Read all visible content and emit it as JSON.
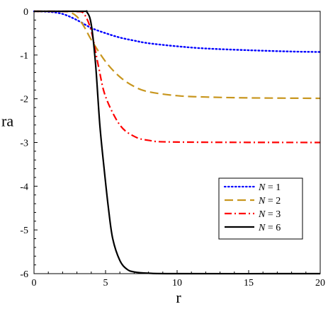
{
  "chart_data": {
    "type": "line",
    "xlabel": "r",
    "ylabel": "ra",
    "xlim": [
      0,
      20
    ],
    "ylim": [
      -6,
      0
    ],
    "xticks": [
      0,
      5,
      10,
      15,
      20
    ],
    "yticks": [
      0,
      -1,
      -2,
      -3,
      -4,
      -5,
      -6
    ],
    "legend_position": "lower-right",
    "series": [
      {
        "name": "N = 1",
        "N": "1",
        "color": "#0000ff",
        "dash": "dotted",
        "points": [
          [
            0,
            0
          ],
          [
            1,
            -0.01
          ],
          [
            2,
            -0.06
          ],
          [
            3,
            -0.2
          ],
          [
            4,
            -0.38
          ],
          [
            5,
            -0.5
          ],
          [
            6,
            -0.6
          ],
          [
            7,
            -0.67
          ],
          [
            8,
            -0.73
          ],
          [
            10,
            -0.8
          ],
          [
            12,
            -0.85
          ],
          [
            15,
            -0.89
          ],
          [
            18,
            -0.92
          ],
          [
            20,
            -0.93
          ]
        ]
      },
      {
        "name": "N = 2",
        "N": "2",
        "color": "#c8961e",
        "dash": "dashed",
        "points": [
          [
            0,
            0
          ],
          [
            1,
            0
          ],
          [
            2,
            -0.005
          ],
          [
            2.5,
            -0.02
          ],
          [
            3,
            -0.12
          ],
          [
            3.5,
            -0.35
          ],
          [
            4,
            -0.65
          ],
          [
            5,
            -1.15
          ],
          [
            6,
            -1.5
          ],
          [
            7,
            -1.72
          ],
          [
            8,
            -1.84
          ],
          [
            10,
            -1.93
          ],
          [
            12,
            -1.96
          ],
          [
            15,
            -1.98
          ],
          [
            20,
            -1.99
          ]
        ]
      },
      {
        "name": "N = 3",
        "N": "3",
        "color": "#ff0000",
        "dash": "dashdot",
        "points": [
          [
            0,
            0
          ],
          [
            2,
            0
          ],
          [
            3,
            -0.005
          ],
          [
            3.5,
            -0.06
          ],
          [
            4,
            -0.45
          ],
          [
            4.5,
            -1.25
          ],
          [
            5,
            -1.95
          ],
          [
            6,
            -2.6
          ],
          [
            7,
            -2.86
          ],
          [
            8,
            -2.95
          ],
          [
            10,
            -2.99
          ],
          [
            20,
            -3.0
          ]
        ]
      },
      {
        "name": "N = 6",
        "N": "6",
        "color": "#000000",
        "dash": "solid",
        "points": [
          [
            0,
            0
          ],
          [
            3.3,
            0
          ],
          [
            3.7,
            -0.02
          ],
          [
            4.0,
            -0.3
          ],
          [
            4.3,
            -1.2
          ],
          [
            4.6,
            -2.6
          ],
          [
            4.9,
            -3.6
          ],
          [
            5.2,
            -4.5
          ],
          [
            5.5,
            -5.2
          ],
          [
            6,
            -5.7
          ],
          [
            6.5,
            -5.9
          ],
          [
            7,
            -5.96
          ],
          [
            8,
            -5.99
          ],
          [
            10,
            -6.0
          ],
          [
            20,
            -6.0
          ]
        ]
      }
    ]
  }
}
